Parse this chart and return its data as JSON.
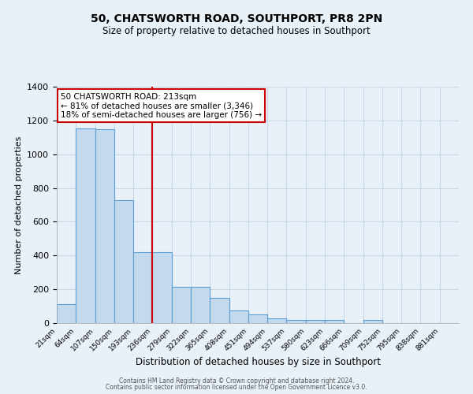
{
  "title": "50, CHATSWORTH ROAD, SOUTHPORT, PR8 2PN",
  "subtitle": "Size of property relative to detached houses in Southport",
  "xlabel": "Distribution of detached houses by size in Southport",
  "ylabel": "Number of detached properties",
  "bar_labels": [
    "21sqm",
    "64sqm",
    "107sqm",
    "150sqm",
    "193sqm",
    "236sqm",
    "279sqm",
    "322sqm",
    "365sqm",
    "408sqm",
    "451sqm",
    "494sqm",
    "537sqm",
    "580sqm",
    "623sqm",
    "666sqm",
    "709sqm",
    "752sqm",
    "795sqm",
    "838sqm",
    "881sqm"
  ],
  "bar_values": [
    110,
    1155,
    1150,
    730,
    420,
    420,
    215,
    215,
    148,
    75,
    50,
    30,
    18,
    18,
    18,
    0,
    18,
    0,
    0,
    0,
    0
  ],
  "bar_color": "#c5d9ee",
  "bar_edge_color": "#5a9fd4",
  "vline_color": "#cc0000",
  "annotation_title": "50 CHATSWORTH ROAD: 213sqm",
  "annotation_line1": "← 81% of detached houses are smaller (3,346)",
  "annotation_line2": "18% of semi-detached houses are larger (756) →",
  "annotation_box_color": "white",
  "annotation_box_edge": "#cc0000",
  "ylim": [
    0,
    1400
  ],
  "yticks": [
    0,
    200,
    400,
    600,
    800,
    1000,
    1200,
    1400
  ],
  "grid_color": "#c8d8e8",
  "background_color": "#e8f0f8",
  "footer1": "Contains HM Land Registry data © Crown copyright and database right 2024.",
  "footer2": "Contains public sector information licensed under the Open Government Licence v3.0."
}
